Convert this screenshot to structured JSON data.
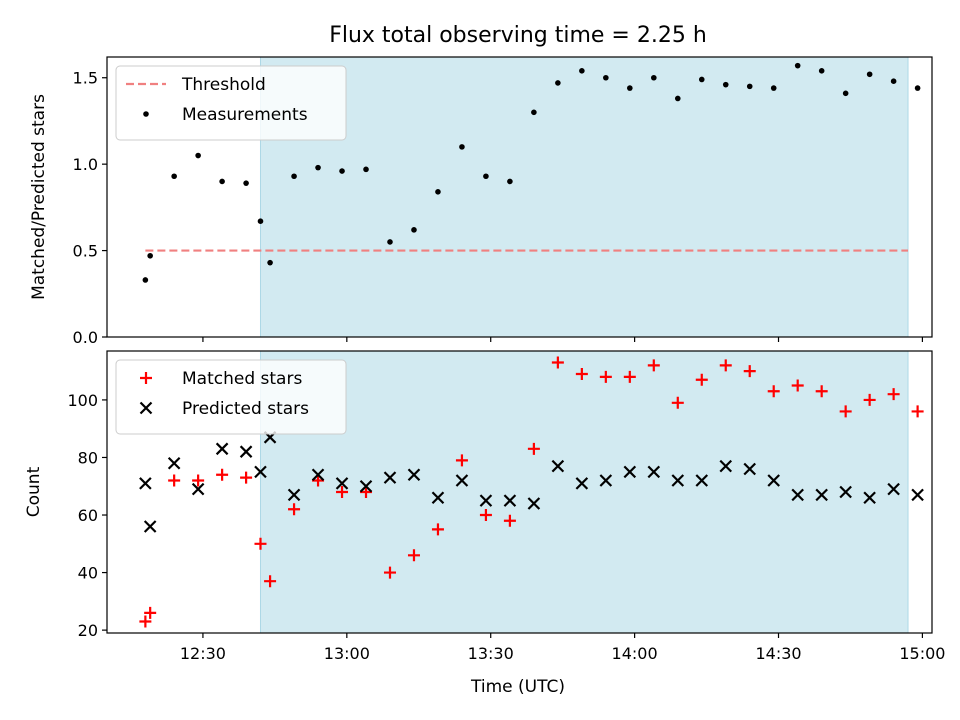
{
  "figure": {
    "title": "Flux total observing time = 2.25 h",
    "xlabel": "Time (UTC)"
  },
  "colors": {
    "shade": "#add8e6",
    "threshold": "#f08080",
    "measurement": "#000000",
    "matched": "#ff0000",
    "predicted": "#000000"
  },
  "chart_data": [
    {
      "type": "scatter",
      "ylabel": "Matched/Predicted stars",
      "ylim": [
        0,
        1.62
      ],
      "yticks": [
        0,
        0.5,
        1.0,
        1.5
      ],
      "ytick_labels": [
        "0.0",
        "0.5",
        "1.0",
        "1.5"
      ],
      "xlim": [
        "12:10",
        "15:02"
      ],
      "xticks": [
        "12:30",
        "13:00",
        "13:30",
        "14:00",
        "14:30",
        "15:00"
      ],
      "xtick_labels": [
        "",
        "",
        "",
        "",
        "",
        ""
      ],
      "legend_position": "top-left",
      "shaded_interval": [
        "12:42",
        "14:57"
      ],
      "threshold": {
        "name": "Threshold",
        "y": 0.5,
        "x": [
          "12:18",
          "14:57"
        ]
      },
      "series": [
        {
          "name": "Measurements",
          "marker": "dot",
          "x": [
            "12:18",
            "12:19",
            "12:24",
            "12:29",
            "12:34",
            "12:39",
            "12:44",
            "12:42",
            "12:49",
            "12:54",
            "12:59",
            "13:04",
            "13:09",
            "13:14",
            "13:19",
            "13:24",
            "13:29",
            "13:34",
            "13:39",
            "13:44",
            "13:49",
            "13:54",
            "13:59",
            "14:04",
            "14:09",
            "14:14",
            "14:19",
            "14:24",
            "14:29",
            "14:34",
            "14:39",
            "14:44",
            "14:49",
            "14:54",
            "14:59"
          ],
          "y": [
            0.33,
            0.47,
            0.93,
            1.05,
            0.9,
            0.89,
            0.43,
            0.67,
            0.93,
            0.98,
            0.96,
            0.97,
            0.55,
            0.62,
            0.84,
            1.1,
            0.93,
            0.9,
            1.3,
            1.47,
            1.54,
            1.5,
            1.44,
            1.5,
            1.38,
            1.49,
            1.46,
            1.45,
            1.44,
            1.57,
            1.54,
            1.41,
            1.52,
            1.48,
            1.44
          ]
        }
      ]
    },
    {
      "type": "scatter",
      "ylabel": "Count",
      "ylim": [
        19,
        117
      ],
      "yticks": [
        20,
        40,
        60,
        80,
        100
      ],
      "ytick_labels": [
        "20",
        "40",
        "60",
        "80",
        "100"
      ],
      "xlim": [
        "12:10",
        "15:02"
      ],
      "xticks": [
        "12:30",
        "13:00",
        "13:30",
        "14:00",
        "14:30",
        "15:00"
      ],
      "xtick_labels": [
        "12:30",
        "13:00",
        "13:30",
        "14:00",
        "14:30",
        "15:00"
      ],
      "legend_position": "top-left",
      "shaded_interval": [
        "12:42",
        "14:57"
      ],
      "series": [
        {
          "name": "Matched stars",
          "marker": "plus",
          "x": [
            "12:18",
            "12:19",
            "12:24",
            "12:29",
            "12:34",
            "12:39",
            "12:44",
            "12:42",
            "12:49",
            "12:54",
            "12:59",
            "13:04",
            "13:09",
            "13:14",
            "13:19",
            "13:24",
            "13:29",
            "13:34",
            "13:39",
            "13:44",
            "13:49",
            "13:54",
            "13:59",
            "14:04",
            "14:09",
            "14:14",
            "14:19",
            "14:24",
            "14:29",
            "14:34",
            "14:39",
            "14:44",
            "14:49",
            "14:54",
            "14:59"
          ],
          "y": [
            23,
            26,
            72,
            72,
            74,
            73,
            37,
            50,
            62,
            72,
            68,
            68,
            40,
            46,
            55,
            79,
            60,
            58,
            83,
            113,
            109,
            108,
            108,
            112,
            99,
            107,
            112,
            110,
            103,
            105,
            103,
            96,
            100,
            102,
            96
          ]
        },
        {
          "name": "Predicted stars",
          "marker": "x",
          "x": [
            "12:18",
            "12:19",
            "12:24",
            "12:29",
            "12:34",
            "12:39",
            "12:44",
            "12:42",
            "12:49",
            "12:54",
            "12:59",
            "13:04",
            "13:09",
            "13:14",
            "13:19",
            "13:24",
            "13:29",
            "13:34",
            "13:39",
            "13:44",
            "13:49",
            "13:54",
            "13:59",
            "14:04",
            "14:09",
            "14:14",
            "14:19",
            "14:24",
            "14:29",
            "14:34",
            "14:39",
            "14:44",
            "14:49",
            "14:54",
            "14:59"
          ],
          "y": [
            71,
            56,
            78,
            69,
            83,
            82,
            87,
            75,
            67,
            74,
            71,
            70,
            73,
            74,
            66,
            72,
            65,
            65,
            64,
            77,
            71,
            72,
            75,
            75,
            72,
            72,
            77,
            76,
            72,
            67,
            67,
            68,
            66,
            69,
            67
          ]
        }
      ]
    }
  ]
}
